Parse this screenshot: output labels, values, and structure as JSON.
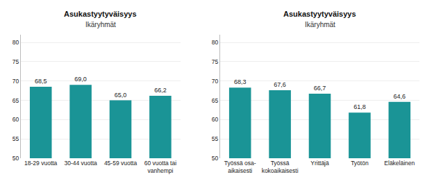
{
  "chart_data": [
    {
      "type": "bar",
      "title": "Asukastyytyväisyys",
      "subtitle": "Ikäryhmät",
      "categories": [
        "18-29 vuotta",
        "30-44 vuotta",
        "45-59 vuotta",
        "60 vuotta tai\nvanhempi"
      ],
      "values": [
        68.5,
        69.0,
        65.0,
        66.2
      ],
      "value_labels": [
        "68,5",
        "69,0",
        "65,0",
        "66,2"
      ],
      "color": "#1a9496",
      "ylim": [
        50,
        82
      ],
      "yticks": [
        50,
        55,
        60,
        65,
        70,
        75,
        80
      ],
      "grid": true,
      "data_labels": true
    },
    {
      "type": "bar",
      "title": "Asukastyytyväisyys",
      "subtitle": "Ikäryhmät",
      "categories": [
        "Työssä osa-\naikaisesti",
        "Työssä\nkokoaikaisesti",
        "Yrittäjä",
        "Työtön",
        "Eläkeläinen"
      ],
      "values": [
        68.3,
        67.6,
        66.7,
        61.8,
        64.6
      ],
      "value_labels": [
        "68,3",
        "67,6",
        "66,7",
        "61,8",
        "64,6"
      ],
      "color": "#1a9496",
      "ylim": [
        50,
        82
      ],
      "yticks": [
        50,
        55,
        60,
        65,
        70,
        75,
        80
      ],
      "grid": true,
      "data_labels": true
    }
  ]
}
